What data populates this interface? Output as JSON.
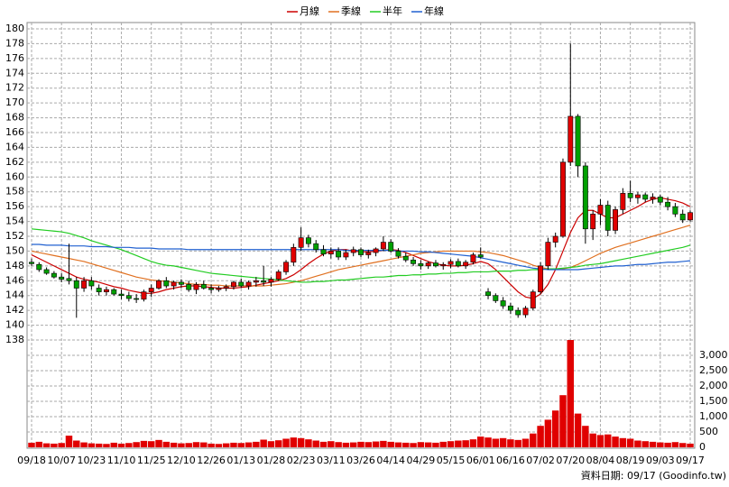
{
  "chart_data": {
    "type": "candlestick",
    "categories": [
      "09/18",
      null,
      null,
      null,
      "10/07",
      null,
      null,
      null,
      "10/23",
      null,
      null,
      null,
      "11/10",
      null,
      null,
      null,
      "11/25",
      null,
      null,
      null,
      "12/10",
      null,
      null,
      null,
      "12/26",
      null,
      null,
      null,
      "01/13",
      null,
      null,
      null,
      "01/28",
      null,
      null,
      null,
      "02/23",
      null,
      null,
      null,
      "03/11",
      null,
      null,
      null,
      "03/26",
      null,
      null,
      null,
      "04/14",
      null,
      null,
      null,
      "04/29",
      null,
      null,
      null,
      "05/15",
      null,
      null,
      null,
      "06/01",
      null,
      null,
      null,
      "06/16",
      null,
      null,
      null,
      "07/02",
      null,
      null,
      null,
      "07/20",
      null,
      null,
      null,
      "08/04",
      null,
      null,
      null,
      "08/19",
      null,
      null,
      null,
      "09/03",
      null,
      null,
      null,
      "09/17"
    ],
    "candles": [
      [
        148.5,
        149,
        148,
        148.3
      ],
      [
        148.2,
        148.5,
        147.2,
        147.5
      ],
      [
        147.5,
        147.8,
        146.8,
        147
      ],
      [
        147,
        147.3,
        146.3,
        146.5
      ],
      [
        146.5,
        147,
        145.8,
        146.2
      ],
      [
        146.3,
        151,
        145.5,
        146
      ],
      [
        146,
        146.5,
        141,
        145
      ],
      [
        145,
        146.5,
        144.5,
        146
      ],
      [
        146,
        146.5,
        144.8,
        145.3
      ],
      [
        145,
        145.5,
        144,
        144.5
      ],
      [
        144.5,
        145.2,
        144,
        144.8
      ],
      [
        144.8,
        145,
        144,
        144.2
      ],
      [
        144.2,
        144.8,
        143.5,
        144
      ],
      [
        144,
        144.5,
        143.2,
        143.6
      ],
      [
        143.6,
        144.2,
        143,
        143.5
      ],
      [
        143.5,
        144.8,
        143.2,
        144.5
      ],
      [
        144.5,
        145.5,
        143.8,
        145
      ],
      [
        145,
        146.2,
        144.8,
        146
      ],
      [
        146,
        146.5,
        145,
        145.3
      ],
      [
        145.3,
        146,
        144.8,
        145.8
      ],
      [
        145.8,
        146.2,
        145,
        145.5
      ],
      [
        145.5,
        146,
        144.5,
        144.8
      ],
      [
        144.8,
        145.8,
        144.2,
        145.5
      ],
      [
        145.5,
        146,
        144.8,
        145
      ],
      [
        145,
        145.5,
        144.3,
        144.8
      ],
      [
        144.8,
        145.3,
        144.5,
        145
      ],
      [
        145,
        145.5,
        144.6,
        145.2
      ],
      [
        145.2,
        146,
        144.8,
        145.8
      ],
      [
        145.8,
        146.3,
        145,
        145.3
      ],
      [
        145.3,
        146,
        144.8,
        145.8
      ],
      [
        145.8,
        146.5,
        145.2,
        146
      ],
      [
        146,
        148,
        145.3,
        145.8
      ],
      [
        145.8,
        146.5,
        145.2,
        146.2
      ],
      [
        146.2,
        147.5,
        146,
        147.2
      ],
      [
        147.2,
        148.8,
        146.8,
        148.5
      ],
      [
        148.5,
        151,
        148,
        150.5
      ],
      [
        150.5,
        153.2,
        150,
        151.8
      ],
      [
        151.8,
        152.2,
        150.5,
        151
      ],
      [
        151,
        151.5,
        149.8,
        150.2
      ],
      [
        150.2,
        150.8,
        149.3,
        149.6
      ],
      [
        149.6,
        150.5,
        149,
        150
      ],
      [
        150,
        150.5,
        148.8,
        149.2
      ],
      [
        149.2,
        150.2,
        148.8,
        149.8
      ],
      [
        149.8,
        150.6,
        149.3,
        150.2
      ],
      [
        150.2,
        150.5,
        149.2,
        149.5
      ],
      [
        149.5,
        150.2,
        149,
        149.8
      ],
      [
        149.8,
        150.5,
        149.3,
        150.3
      ],
      [
        150.3,
        152,
        150,
        151.2
      ],
      [
        151.2,
        151.6,
        149.8,
        150
      ],
      [
        150,
        150.4,
        149,
        149.3
      ],
      [
        149.3,
        149.8,
        148.5,
        148.8
      ],
      [
        148.8,
        149.2,
        148,
        148.3
      ],
      [
        148.3,
        148.8,
        147.5,
        148
      ],
      [
        148,
        148.6,
        147.6,
        148.4
      ],
      [
        148.4,
        148.8,
        147.8,
        148
      ],
      [
        148,
        148.5,
        147.5,
        148.2
      ],
      [
        148.2,
        148.9,
        147.7,
        148.6
      ],
      [
        148.6,
        149,
        147.8,
        148
      ],
      [
        148,
        148.8,
        147.6,
        148.5
      ],
      [
        148.5,
        149.8,
        148.2,
        149.5
      ],
      [
        149.5,
        150.5,
        149,
        149.2
      ],
      [
        144.5,
        145,
        143.5,
        144
      ],
      [
        144,
        144.3,
        143,
        143.3
      ],
      [
        143.3,
        143.8,
        142.2,
        142.6
      ],
      [
        142.6,
        143,
        141.5,
        142
      ],
      [
        142,
        142.4,
        141,
        141.4
      ],
      [
        141.4,
        142.6,
        141,
        142.3
      ],
      [
        142.3,
        144.8,
        142,
        144.5
      ],
      [
        144.5,
        148.5,
        144.2,
        148
      ],
      [
        148,
        151.8,
        147.5,
        151.2
      ],
      [
        151.2,
        152.5,
        150.5,
        152
      ],
      [
        152,
        162.5,
        151.8,
        162
      ],
      [
        162,
        178,
        161.5,
        168.2
      ],
      [
        168.2,
        168.5,
        160,
        161.5
      ],
      [
        161.5,
        162,
        151,
        153
      ],
      [
        153,
        155.5,
        151.5,
        155
      ],
      [
        155,
        157,
        153.5,
        156.2
      ],
      [
        156.2,
        156.8,
        152,
        152.8
      ],
      [
        152.8,
        156,
        152.3,
        155.6
      ],
      [
        155.6,
        158.5,
        155,
        157.8
      ],
      [
        157.8,
        159.5,
        156.6,
        157.2
      ],
      [
        157.2,
        158,
        156.4,
        157.6
      ],
      [
        157.6,
        157.9,
        156.6,
        157
      ],
      [
        157,
        157.8,
        156.4,
        157.3
      ],
      [
        157.3,
        157.6,
        156.2,
        156.6
      ],
      [
        156.6,
        157.3,
        155.5,
        156
      ],
      [
        156,
        156.5,
        154.6,
        155
      ],
      [
        155,
        155.6,
        153.8,
        154.2
      ],
      [
        154.2,
        155.5,
        154,
        155.2
      ]
    ],
    "up_color": "#e00000",
    "down_color": "#00a000",
    "ylim": [
      138,
      180
    ],
    "yticks": [
      138,
      140,
      142,
      144,
      146,
      148,
      150,
      152,
      154,
      156,
      158,
      160,
      162,
      164,
      166,
      168,
      170,
      172,
      174,
      176,
      178,
      180
    ],
    "grid": true,
    "legend_position": "top",
    "series": [
      {
        "name": "月線",
        "color": "#cc0000",
        "values": [
          149.5,
          149,
          148.5,
          148,
          147.5,
          147,
          146.5,
          146.2,
          146,
          145.8,
          145.5,
          145.2,
          145,
          144.7,
          144.5,
          144.3,
          144.3,
          144.5,
          144.8,
          145,
          145.2,
          145.3,
          145.3,
          145.2,
          145.1,
          145,
          145,
          145,
          145.1,
          145.2,
          145.4,
          145.6,
          145.8,
          146,
          146.3,
          146.8,
          147.5,
          148.3,
          149,
          149.6,
          150,
          150.2,
          150.2,
          150,
          149.9,
          149.9,
          150,
          150.1,
          150.2,
          150.1,
          149.8,
          149.4,
          149,
          148.6,
          148.3,
          148.1,
          148,
          148,
          148.1,
          148.3,
          148.6,
          148.3,
          147.5,
          146.5,
          145.5,
          144.5,
          143.8,
          143.6,
          144.2,
          145.5,
          147.5,
          150,
          152.5,
          154.5,
          155.5,
          155.5,
          155,
          154.5,
          154.5,
          155,
          155.5,
          156,
          156.6,
          157,
          157.2,
          157,
          156.8,
          156.5,
          156
        ]
      },
      {
        "name": "季線",
        "color": "#e07020",
        "values": [
          150,
          149.8,
          149.6,
          149.4,
          149.2,
          149,
          148.8,
          148.6,
          148.3,
          148,
          147.7,
          147.4,
          147.1,
          146.8,
          146.5,
          146.3,
          146.1,
          146,
          145.9,
          145.8,
          145.7,
          145.6,
          145.5,
          145.5,
          145.4,
          145.4,
          145.3,
          145.3,
          145.3,
          145.3,
          145.3,
          145.3,
          145.4,
          145.5,
          145.6,
          145.8,
          146,
          146.3,
          146.6,
          146.9,
          147.2,
          147.5,
          147.7,
          147.9,
          148.1,
          148.3,
          148.5,
          148.7,
          148.9,
          149.1,
          149.3,
          149.5,
          149.7,
          149.8,
          149.9,
          150,
          150,
          150,
          150,
          150,
          149.9,
          149.8,
          149.6,
          149.4,
          149.1,
          148.8,
          148.5,
          148.1,
          147.8,
          147.6,
          147.5,
          147.6,
          147.8,
          148.2,
          148.7,
          149.2,
          149.7,
          150.1,
          150.5,
          150.8,
          151.1,
          151.4,
          151.7,
          152,
          152.3,
          152.6,
          152.9,
          153.2,
          153.5
        ]
      },
      {
        "name": "半年",
        "color": "#22cc22",
        "values": [
          153,
          152.9,
          152.8,
          152.7,
          152.6,
          152.4,
          152.1,
          151.8,
          151.4,
          151.1,
          150.8,
          150.5,
          150.2,
          149.8,
          149.4,
          149,
          148.6,
          148.3,
          148.1,
          148,
          147.8,
          147.6,
          147.4,
          147.2,
          147,
          146.9,
          146.8,
          146.7,
          146.6,
          146.5,
          146.4,
          146.3,
          146.2,
          146.1,
          146,
          145.9,
          145.8,
          145.8,
          145.9,
          145.9,
          146,
          146.1,
          146.1,
          146.2,
          146.3,
          146.4,
          146.5,
          146.5,
          146.6,
          146.7,
          146.7,
          146.8,
          146.8,
          146.9,
          146.9,
          147,
          147,
          147.1,
          147.1,
          147.2,
          147.2,
          147.2,
          147.3,
          147.3,
          147.3,
          147.4,
          147.4,
          147.5,
          147.5,
          147.6,
          147.6,
          147.7,
          147.8,
          147.9,
          148.1,
          148.2,
          148.3,
          148.5,
          148.7,
          148.9,
          149.1,
          149.3,
          149.5,
          149.7,
          149.9,
          150.1,
          150.3,
          150.5,
          150.8
        ]
      },
      {
        "name": "年線",
        "color": "#2060d0",
        "values": [
          150.9,
          150.9,
          150.8,
          150.8,
          150.8,
          150.7,
          150.7,
          150.7,
          150.6,
          150.6,
          150.6,
          150.5,
          150.5,
          150.5,
          150.4,
          150.4,
          150.4,
          150.3,
          150.3,
          150.3,
          150.3,
          150.2,
          150.2,
          150.2,
          150.2,
          150.2,
          150.2,
          150.2,
          150.2,
          150.2,
          150.2,
          150.2,
          150.2,
          150.2,
          150.2,
          150.2,
          150.2,
          150.2,
          150.2,
          150.2,
          150.2,
          150.2,
          150.1,
          150.1,
          150.1,
          150.1,
          150.1,
          150.1,
          150.1,
          150,
          150,
          150,
          149.9,
          149.9,
          149.8,
          149.7,
          149.6,
          149.5,
          149.4,
          149.3,
          149.1,
          148.9,
          148.7,
          148.5,
          148.3,
          148.1,
          147.9,
          147.7,
          147.6,
          147.5,
          147.5,
          147.5,
          147.5,
          147.5,
          147.6,
          147.7,
          147.8,
          147.9,
          148,
          148,
          148.1,
          148.2,
          148.2,
          148.3,
          148.4,
          148.5,
          148.5,
          148.6,
          148.7
        ]
      }
    ],
    "volume": {
      "color": "#e00000",
      "values": [
        150,
        180,
        130,
        120,
        140,
        380,
        220,
        160,
        130,
        120,
        110,
        150,
        120,
        140,
        170,
        210,
        200,
        240,
        180,
        150,
        130,
        140,
        170,
        160,
        120,
        110,
        130,
        150,
        140,
        160,
        180,
        250,
        200,
        230,
        280,
        320,
        300,
        260,
        220,
        180,
        200,
        170,
        150,
        160,
        180,
        170,
        190,
        210,
        180,
        160,
        150,
        140,
        170,
        160,
        150,
        180,
        200,
        220,
        230,
        260,
        350,
        320,
        280,
        300,
        260,
        240,
        280,
        450,
        700,
        900,
        1200,
        1700,
        3500,
        1100,
        700,
        450,
        400,
        420,
        350,
        300,
        280,
        220,
        200,
        180,
        160,
        150,
        170,
        140,
        120
      ],
      "ylim": [
        0,
        3500
      ],
      "yticks": [
        0,
        {
          "value": 500,
          "label": "500"
        },
        {
          "value": 1000,
          "label": "1,000"
        },
        {
          "value": 1500,
          "label": "1,500"
        },
        {
          "value": 2000,
          "label": "2,000"
        },
        {
          "value": 2500,
          "label": "2,500"
        },
        {
          "value": 3000,
          "label": "3,000"
        }
      ]
    },
    "footer": "資料日期: 09/17  (Goodinfo.tw)"
  }
}
